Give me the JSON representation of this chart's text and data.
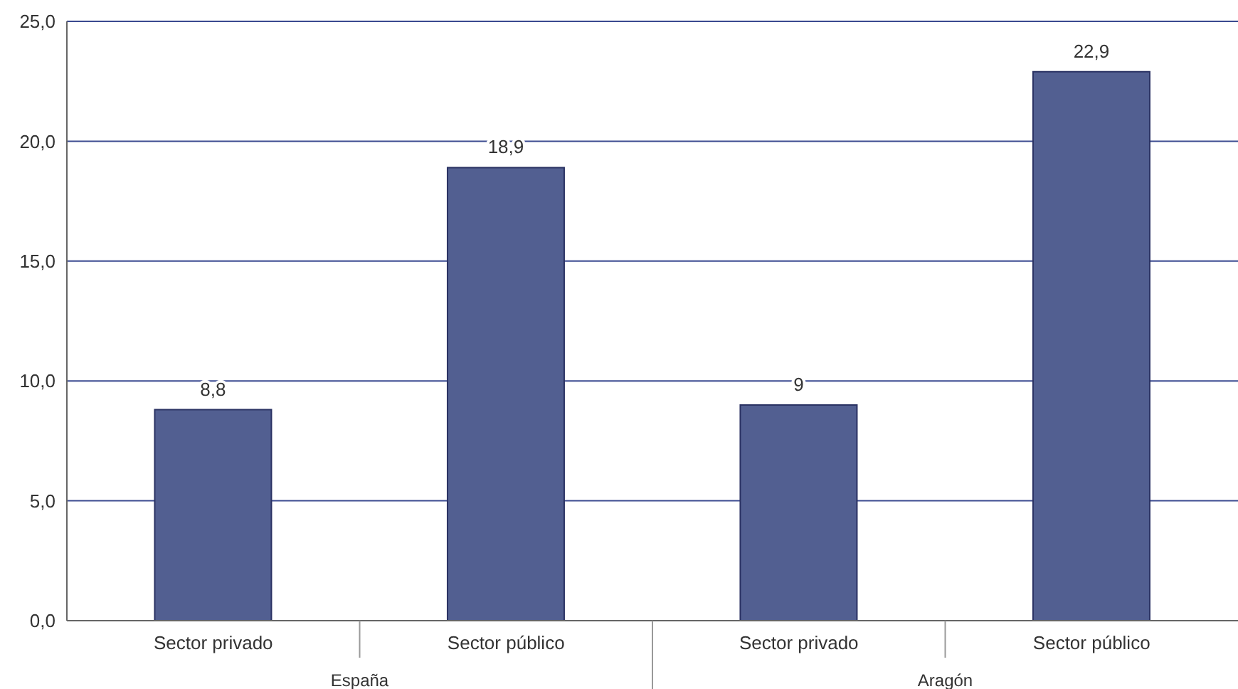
{
  "chart_data": {
    "type": "bar",
    "categories": [
      "Sector privado",
      "Sector público",
      "Sector privado",
      "Sector público"
    ],
    "values": [
      8.8,
      18.9,
      9,
      22.9
    ],
    "value_labels": [
      "8,8",
      "18,9",
      "9",
      "22,9"
    ],
    "color": "#525f91",
    "ylim": [
      0,
      25
    ],
    "yticks": [
      {
        "value": 0,
        "label": "0,0"
      },
      {
        "value": 5,
        "label": "5,0"
      },
      {
        "value": 10,
        "label": "10,0"
      },
      {
        "value": 15,
        "label": "15,0"
      },
      {
        "value": 20,
        "label": "20,0"
      },
      {
        "value": 25,
        "label": "25,0"
      }
    ],
    "grid": "y",
    "annotations": [
      "España",
      "Aragón"
    ]
  }
}
